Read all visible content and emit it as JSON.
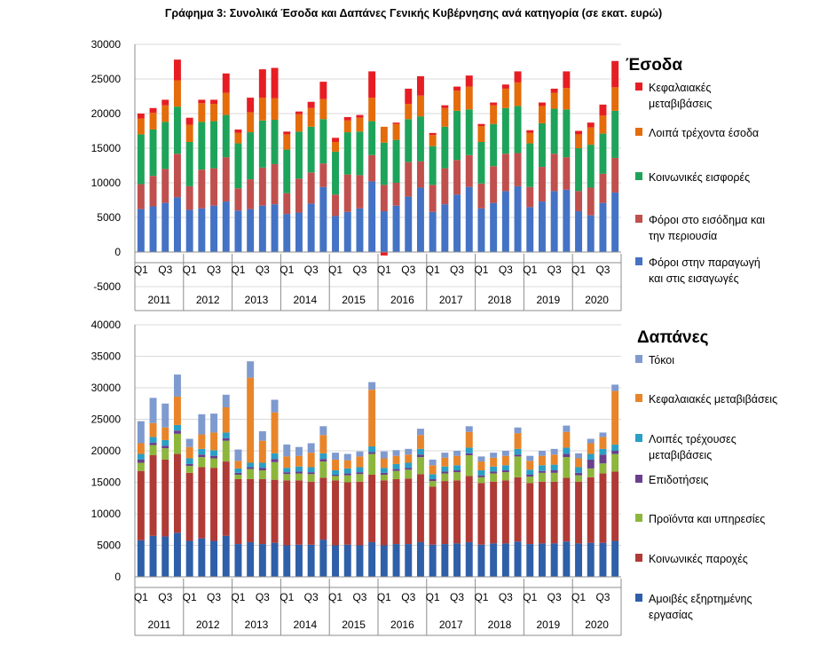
{
  "title": "Γράφημα 3: Συνολικά Έσοδα και Δαπάνες Γενικής Κυβέρνησης ανά κατηγορία (σε εκατ. ευρώ)",
  "chart_data": [
    {
      "type": "bar",
      "stacked": true,
      "legend_title": "Έσοδα",
      "legend_position": "right",
      "ylim": [
        -5000,
        30000
      ],
      "yticks": [
        -5000,
        0,
        5000,
        10000,
        15000,
        20000,
        25000,
        30000
      ],
      "quarter_labels": [
        "Q1",
        "Q3"
      ],
      "years": [
        "2011",
        "2012",
        "2013",
        "2014",
        "2015",
        "2016",
        "2017",
        "2018",
        "2019",
        "2020"
      ],
      "categories": [
        "2011Q1",
        "2011Q2",
        "2011Q3",
        "2011Q4",
        "2012Q1",
        "2012Q2",
        "2012Q3",
        "2012Q4",
        "2013Q1",
        "2013Q2",
        "2013Q3",
        "2013Q4",
        "2014Q1",
        "2014Q2",
        "2014Q3",
        "2014Q4",
        "2015Q1",
        "2015Q2",
        "2015Q3",
        "2015Q4",
        "2016Q1",
        "2016Q2",
        "2016Q3",
        "2016Q4",
        "2017Q1",
        "2017Q2",
        "2017Q3",
        "2017Q4",
        "2018Q1",
        "2018Q2",
        "2018Q3",
        "2018Q4",
        "2019Q1",
        "2019Q2",
        "2019Q3",
        "2019Q4",
        "2020Q1",
        "2020Q2",
        "2020Q3",
        "2020Q4"
      ],
      "series": [
        {
          "name": "Φόροι στην παραγωγή και στις εισαγωγές",
          "color": "#4472C4",
          "values": [
            6200,
            6600,
            7100,
            7900,
            6100,
            6300,
            6700,
            7300,
            6000,
            6200,
            6700,
            6900,
            5500,
            5700,
            7000,
            9400,
            5200,
            5800,
            6300,
            10200,
            5900,
            6700,
            8000,
            9300,
            5800,
            6900,
            8300,
            9400,
            6300,
            7100,
            8800,
            9500,
            6500,
            7300,
            8800,
            9000,
            5900,
            5300,
            7100,
            8600
          ]
        },
        {
          "name": "Φόροι στο εισόδημα και την περιουσία",
          "color": "#C0504D",
          "values": [
            3600,
            4400,
            4900,
            6300,
            3400,
            5600,
            5400,
            6400,
            3200,
            4300,
            5500,
            5800,
            3000,
            4900,
            4500,
            3400,
            3100,
            5400,
            4800,
            3800,
            3800,
            3300,
            5000,
            3800,
            3900,
            5200,
            5000,
            4600,
            3600,
            5300,
            5400,
            4800,
            2900,
            5000,
            5400,
            4700,
            2900,
            4000,
            4200,
            5000
          ]
        },
        {
          "name": "Κοινωνικές εισφορές",
          "color": "#1EA35A",
          "values": [
            7200,
            6700,
            6800,
            6800,
            6400,
            6900,
            6800,
            6100,
            6500,
            6800,
            6800,
            6400,
            6300,
            6800,
            6600,
            6400,
            6200,
            6100,
            6300,
            4900,
            6100,
            6200,
            6200,
            6500,
            5600,
            6000,
            7100,
            6600,
            6000,
            6100,
            6600,
            6800,
            6300,
            6300,
            6500,
            6900,
            6200,
            6200,
            5800,
            6800
          ]
        },
        {
          "name": "Λοιπά τρέχοντα έσοδα",
          "color": "#E46C0A",
          "values": [
            2300,
            2400,
            2400,
            3800,
            2500,
            2700,
            2500,
            3200,
            1500,
            2900,
            3300,
            3100,
            2200,
            2500,
            2700,
            2900,
            1400,
            1700,
            2000,
            3400,
            2300,
            2300,
            2200,
            3000,
            1600,
            2700,
            2900,
            3300,
            2300,
            2700,
            2800,
            3400,
            1500,
            2500,
            2300,
            3100,
            2000,
            2500,
            2600,
            3400
          ]
        },
        {
          "name": "Κεφαλαιακές μεταβιβάσεις",
          "color": "#E61E24",
          "values": [
            700,
            700,
            800,
            3000,
            1000,
            500,
            600,
            2800,
            500,
            2100,
            4100,
            4400,
            400,
            400,
            900,
            2500,
            600,
            500,
            400,
            3800,
            -500,
            200,
            2200,
            2800,
            300,
            400,
            600,
            1600,
            300,
            400,
            600,
            1600,
            400,
            500,
            600,
            2400,
            500,
            700,
            1600,
            3800
          ]
        }
      ]
    },
    {
      "type": "bar",
      "stacked": true,
      "legend_title": "Δαπάνες",
      "legend_position": "right",
      "ylim": [
        0,
        40000
      ],
      "yticks": [
        0,
        5000,
        10000,
        15000,
        20000,
        25000,
        30000,
        35000,
        40000
      ],
      "quarter_labels": [
        "Q1",
        "Q3"
      ],
      "years": [
        "2011",
        "2012",
        "2013",
        "2014",
        "2015",
        "2016",
        "2017",
        "2018",
        "2019",
        "2020"
      ],
      "categories": [
        "2011Q1",
        "2011Q2",
        "2011Q3",
        "2011Q4",
        "2012Q1",
        "2012Q2",
        "2012Q3",
        "2012Q4",
        "2013Q1",
        "2013Q2",
        "2013Q3",
        "2013Q4",
        "2014Q1",
        "2014Q2",
        "2014Q3",
        "2014Q4",
        "2015Q1",
        "2015Q2",
        "2015Q3",
        "2015Q4",
        "2016Q1",
        "2016Q2",
        "2016Q3",
        "2016Q4",
        "2017Q1",
        "2017Q2",
        "2017Q3",
        "2017Q4",
        "2018Q1",
        "2018Q2",
        "2018Q3",
        "2018Q4",
        "2019Q1",
        "2019Q2",
        "2019Q3",
        "2019Q4",
        "2020Q1",
        "2020Q2",
        "2020Q3",
        "2020Q4"
      ],
      "series": [
        {
          "name": "Αμοιβές εξηρτημένης εργασίας",
          "color": "#2E5FA8",
          "values": [
            5800,
            6500,
            6400,
            7000,
            5700,
            6100,
            5700,
            6500,
            5200,
            5500,
            5200,
            5400,
            5000,
            5100,
            5100,
            5900,
            5000,
            5100,
            5000,
            5500,
            5000,
            5200,
            5200,
            5500,
            5100,
            5200,
            5300,
            5500,
            5100,
            5300,
            5300,
            5600,
            5200,
            5300,
            5300,
            5600,
            5300,
            5400,
            5400,
            5700
          ]
        },
        {
          "name": "Κοινωνικές παροχές",
          "color": "#B03A36",
          "values": [
            11000,
            12800,
            12200,
            12500,
            10800,
            11300,
            11600,
            11800,
            10300,
            10000,
            10300,
            10000,
            10300,
            10200,
            10000,
            9800,
            10300,
            9900,
            10100,
            10700,
            10300,
            10300,
            10400,
            10800,
            9200,
            10000,
            10000,
            10500,
            9800,
            9800,
            10000,
            10200,
            9700,
            9800,
            9800,
            10100,
            9800,
            10400,
            11000,
            11000
          ]
        },
        {
          "name": "Προϊόντα και υπηρεσίες",
          "color": "#8DB63C",
          "values": [
            1300,
            1600,
            1800,
            3200,
            1100,
            1600,
            1500,
            3300,
            700,
            1600,
            1400,
            2800,
            1000,
            1100,
            1200,
            2600,
            700,
            1100,
            1200,
            3300,
            900,
            1300,
            1400,
            2700,
            900,
            1200,
            1300,
            3300,
            900,
            1300,
            1300,
            3300,
            1000,
            1400,
            1400,
            3300,
            1000,
            1400,
            1600,
            2800
          ]
        },
        {
          "name": "Επιδοτήσεις",
          "color": "#6A3F8C",
          "values": [
            500,
            400,
            400,
            500,
            300,
            400,
            400,
            400,
            300,
            300,
            400,
            500,
            300,
            300,
            300,
            400,
            200,
            300,
            300,
            300,
            300,
            300,
            300,
            400,
            300,
            300,
            300,
            300,
            300,
            300,
            300,
            300,
            300,
            300,
            400,
            500,
            400,
            1400,
            1400,
            500
          ]
        },
        {
          "name": "Λοιπές τρέχουσες μεταβιβάσεις",
          "color": "#2B9FC4",
          "values": [
            900,
            900,
            900,
            900,
            900,
            900,
            900,
            900,
            700,
            700,
            800,
            900,
            700,
            800,
            800,
            900,
            700,
            800,
            800,
            900,
            800,
            800,
            800,
            900,
            800,
            800,
            800,
            900,
            800,
            800,
            800,
            900,
            800,
            900,
            900,
            1000,
            900,
            900,
            900,
            1000
          ]
        },
        {
          "name": "Κεφαλαιακές μεταβιβάσεις",
          "color": "#E8852A",
          "values": [
            1700,
            2200,
            2000,
            4500,
            1800,
            2300,
            2800,
            4000,
            1200,
            13500,
            3500,
            6500,
            1800,
            1700,
            2300,
            2900,
            1700,
            1300,
            1700,
            9000,
            1500,
            1300,
            1300,
            2200,
            1400,
            1400,
            1500,
            2500,
            1400,
            1400,
            1500,
            2500,
            1400,
            1500,
            1600,
            2500,
            1400,
            1700,
            1900,
            8500
          ]
        },
        {
          "name": "Τόκοι",
          "color": "#7F9ACF",
          "values": [
            3500,
            4000,
            3800,
            3500,
            1300,
            3200,
            3000,
            2000,
            1800,
            2600,
            1500,
            2000,
            1900,
            1400,
            1500,
            1400,
            1100,
            1000,
            800,
            1200,
            1100,
            900,
            900,
            1000,
            900,
            800,
            800,
            900,
            800,
            800,
            800,
            900,
            800,
            800,
            900,
            1000,
            800,
            700,
            700,
            1000
          ]
        }
      ]
    }
  ]
}
